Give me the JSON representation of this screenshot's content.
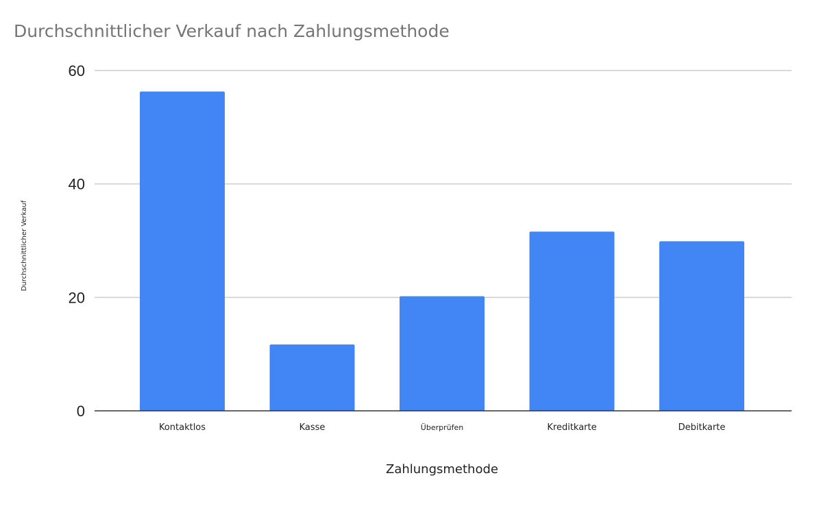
{
  "chart_data": {
    "type": "bar",
    "title": "Durchschnittlicher Verkauf nach Zahlungsmethode",
    "xlabel": "Zahlungsmethode",
    "ylabel": "Durchschnittlicher Verkauf",
    "categories": [
      "Kontaktlos",
      "Kasse",
      "Überprüfen",
      "Kreditkarte",
      "Debitkarte"
    ],
    "values": [
      56.3,
      11.7,
      20.2,
      31.6,
      29.9
    ],
    "ylim": [
      0,
      60
    ],
    "yticks": [
      0,
      20,
      40,
      60
    ],
    "grid": true,
    "legend": "none",
    "colors": {
      "bar": "#4285f4",
      "grid": "#cccccc",
      "axis": "#333333"
    }
  }
}
